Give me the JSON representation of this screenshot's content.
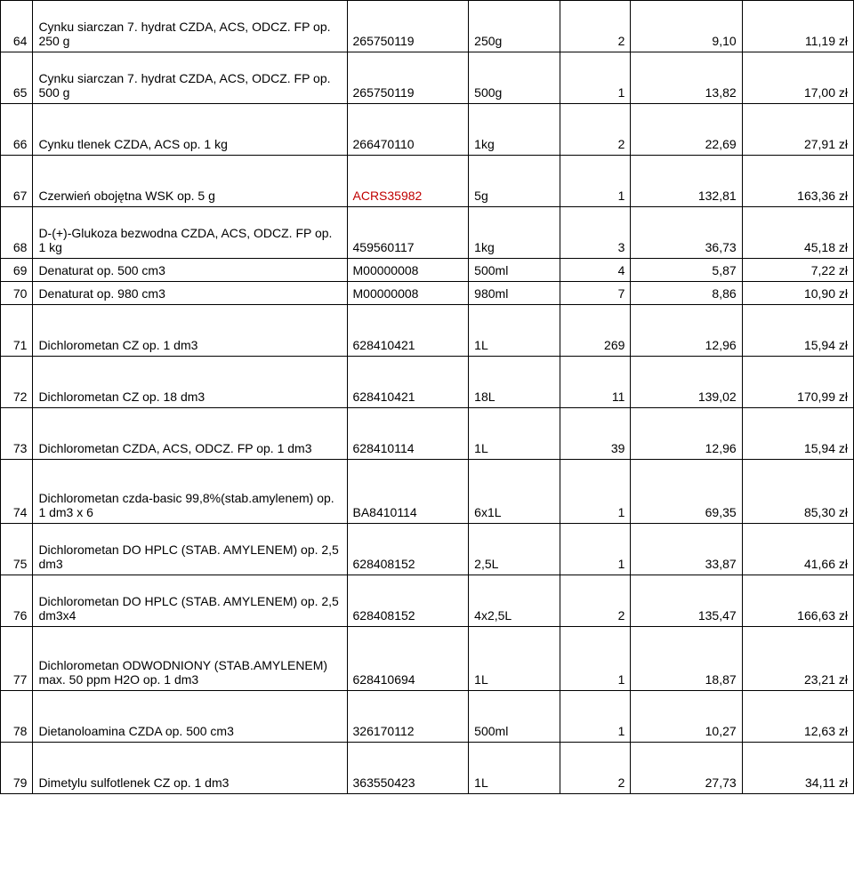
{
  "colors": {
    "text": "#000000",
    "border": "#000000",
    "red": "#c00000",
    "background": "#ffffff"
  },
  "font": {
    "family": "Arial",
    "size_pt": 11
  },
  "columns": [
    "num",
    "desc",
    "code",
    "pack",
    "qty",
    "price1",
    "price2"
  ],
  "rows": [
    {
      "h": "tall",
      "num": "64",
      "desc": "Cynku siarczan 7. hydrat CZDA, ACS, ODCZ. FP op. 250 g",
      "code": "265750119",
      "pack": "250g",
      "qty": "2",
      "price1": "9,10",
      "price2": "11,19 zł"
    },
    {
      "h": "tall",
      "num": "65",
      "desc": "Cynku siarczan 7. hydrat CZDA, ACS, ODCZ. FP op. 500 g",
      "code": "265750119",
      "pack": "500g",
      "qty": "1",
      "price1": "13,82",
      "price2": "17,00 zł"
    },
    {
      "h": "tall",
      "num": "66",
      "desc": "Cynku tlenek CZDA, ACS op. 1 kg",
      "code": "266470110",
      "pack": "1kg",
      "qty": "2",
      "price1": "22,69",
      "price2": "27,91 zł"
    },
    {
      "h": "tall",
      "num": "67",
      "desc": "Czerwień obojętna WSK op. 5 g",
      "code": "ACRS35982",
      "code_red": true,
      "pack": "5g",
      "qty": "1",
      "price1": "132,81",
      "price2": "163,36 zł"
    },
    {
      "h": "tall",
      "num": "68",
      "desc": "D-(+)-Glukoza bezwodna CZDA, ACS, ODCZ. FP op. 1 kg",
      "code": "459560117",
      "pack": "1kg",
      "qty": "3",
      "price1": "36,73",
      "price2": "45,18 zł"
    },
    {
      "h": "short",
      "num": "69",
      "desc": "Denaturat op. 500 cm3",
      "code": "M00000008",
      "pack": "500ml",
      "qty": "4",
      "price1": "5,87",
      "price2": "7,22 zł"
    },
    {
      "h": "short",
      "num": "70",
      "desc": "Denaturat op. 980 cm3",
      "code": "M00000008",
      "pack": "980ml",
      "qty": "7",
      "price1": "8,86",
      "price2": "10,90 zł"
    },
    {
      "h": "tall",
      "num": "71",
      "desc": "Dichlorometan CZ op. 1 dm3",
      "code": "628410421",
      "pack": "1L",
      "qty": "269",
      "price1": "12,96",
      "price2": "15,94 zł"
    },
    {
      "h": "tall",
      "num": "72",
      "desc": "Dichlorometan CZ op. 18 dm3",
      "code": "628410421",
      "pack": "18L",
      "qty": "11",
      "price1": "139,02",
      "price2": "170,99 zł"
    },
    {
      "h": "tall",
      "num": "73",
      "desc": "Dichlorometan CZDA, ACS, ODCZ. FP op. 1 dm3",
      "code": "628410114",
      "pack": "1L",
      "qty": "39",
      "price1": "12,96",
      "price2": "15,94 zł"
    },
    {
      "h": "med",
      "num": "74",
      "desc": "Dichlorometan czda-basic 99,8%(stab.amylenem) op. 1 dm3 x 6",
      "code": "BA8410114",
      "pack": "6x1L",
      "qty": "1",
      "price1": "69,35",
      "price2": "85,30 zł"
    },
    {
      "h": "tall",
      "num": "75",
      "desc": "Dichlorometan DO HPLC (STAB. AMYLENEM) op. 2,5 dm3",
      "code": "628408152",
      "pack": "2,5L",
      "qty": "1",
      "price1": "33,87",
      "price2": "41,66 zł"
    },
    {
      "h": "tall",
      "num": "76",
      "desc": "Dichlorometan DO HPLC (STAB. AMYLENEM) op. 2,5 dm3x4",
      "code": "628408152",
      "pack": "4x2,5L",
      "qty": "2",
      "price1": "135,47",
      "price2": "166,63 zł"
    },
    {
      "h": "med",
      "num": "77",
      "desc": "Dichlorometan ODWODNIONY (STAB.AMYLENEM) max. 50 ppm H2O op. 1 dm3",
      "code": "628410694",
      "pack": "1L",
      "qty": "1",
      "price1": "18,87",
      "price2": "23,21 zł"
    },
    {
      "h": "tall",
      "num": "78",
      "desc": "Dietanoloamina CZDA op. 500 cm3",
      "code": "326170112",
      "pack": "500ml",
      "qty": "1",
      "price1": "10,27",
      "price2": "12,63 zł"
    },
    {
      "h": "tall",
      "num": "79",
      "desc": "Dimetylu sulfotlenek CZ op. 1 dm3",
      "code": "363550423",
      "pack": "1L",
      "qty": "2",
      "price1": "27,73",
      "price2": "34,11 zł"
    }
  ]
}
